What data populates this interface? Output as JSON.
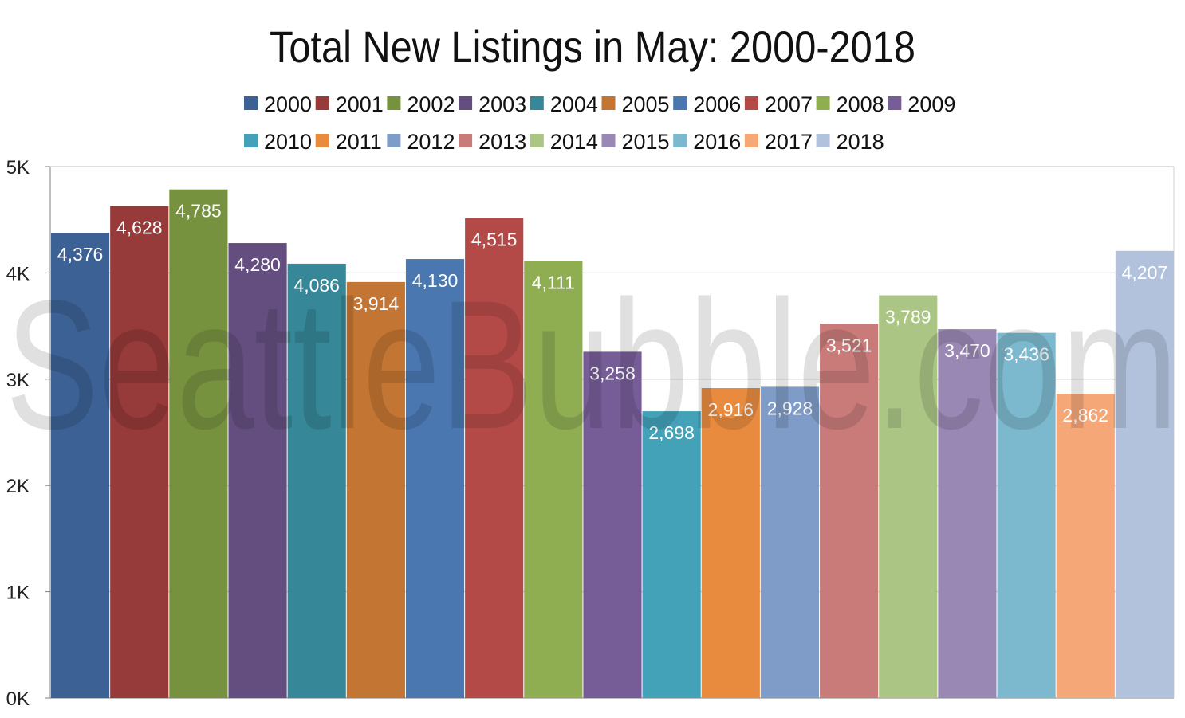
{
  "watermark": "SeattleBubble.com",
  "chart_data": {
    "type": "bar",
    "title": "Total New Listings in May: 2000-2018",
    "xlabel": "",
    "ylabel": "",
    "ylim": [
      0,
      5000
    ],
    "y_ticks": [
      {
        "value": 0,
        "label": "0K"
      },
      {
        "value": 1000,
        "label": "1K"
      },
      {
        "value": 2000,
        "label": "2K"
      },
      {
        "value": 3000,
        "label": "3K"
      },
      {
        "value": 4000,
        "label": "4K"
      },
      {
        "value": 5000,
        "label": "5K"
      }
    ],
    "grid": true,
    "legend_position": "top",
    "series": [
      {
        "name": "2000",
        "value": 4376,
        "label": "4,376",
        "color": "#3c6194"
      },
      {
        "name": "2001",
        "value": 4628,
        "label": "4,628",
        "color": "#963a3a"
      },
      {
        "name": "2002",
        "value": 4785,
        "label": "4,785",
        "color": "#77923f"
      },
      {
        "name": "2003",
        "value": 4280,
        "label": "4,280",
        "color": "#634e7f"
      },
      {
        "name": "2004",
        "value": 4086,
        "label": "4,086",
        "color": "#368797"
      },
      {
        "name": "2005",
        "value": 3914,
        "label": "3,914",
        "color": "#c37533"
      },
      {
        "name": "2006",
        "value": 4130,
        "label": "4,130",
        "color": "#4a77b0"
      },
      {
        "name": "2007",
        "value": 4515,
        "label": "4,515",
        "color": "#b44a48"
      },
      {
        "name": "2008",
        "value": 4111,
        "label": "4,111",
        "color": "#8fae52"
      },
      {
        "name": "2009",
        "value": 3258,
        "label": "3,258",
        "color": "#775d98"
      },
      {
        "name": "2010",
        "value": 2698,
        "label": "2,698",
        "color": "#43a1b8"
      },
      {
        "name": "2011",
        "value": 2916,
        "label": "2,916",
        "color": "#e88b3f"
      },
      {
        "name": "2012",
        "value": 2928,
        "label": "2,928",
        "color": "#7f9bc7"
      },
      {
        "name": "2013",
        "value": 3521,
        "label": "3,521",
        "color": "#c97b7a"
      },
      {
        "name": "2014",
        "value": 3789,
        "label": "3,789",
        "color": "#aac584"
      },
      {
        "name": "2015",
        "value": 3470,
        "label": "3,470",
        "color": "#9a88b4"
      },
      {
        "name": "2016",
        "value": 3436,
        "label": "3,436",
        "color": "#7db9ce"
      },
      {
        "name": "2017",
        "value": 2862,
        "label": "2,862",
        "color": "#f5a778"
      },
      {
        "name": "2018",
        "value": 4207,
        "label": "4,207",
        "color": "#b2c2dd"
      }
    ]
  }
}
